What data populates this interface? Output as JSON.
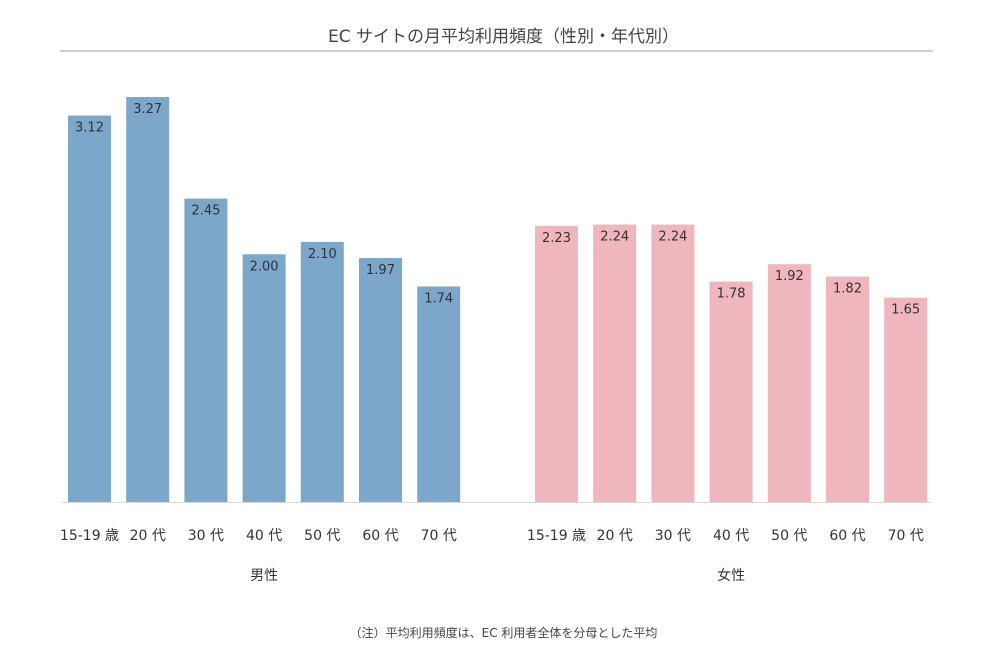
{
  "chart_data": {
    "type": "bar",
    "title": "EC サイトの月平均利用頻度（性別・年代別）",
    "note": "（注）平均利用頻度は、EC 利用者全体を分母とした平均",
    "categories": [
      "15-19 歳",
      "20 代",
      "30 代",
      "40 代",
      "50 代",
      "60 代",
      "70 代"
    ],
    "series": [
      {
        "name": "男性",
        "color": "#7ba7ca",
        "values": [
          3.12,
          3.27,
          2.45,
          2.0,
          2.1,
          1.97,
          1.74
        ]
      },
      {
        "name": "女性",
        "color": "#efb6bd",
        "values": [
          2.23,
          2.24,
          2.24,
          1.78,
          1.92,
          1.82,
          1.65
        ]
      }
    ],
    "ylim": [
      0,
      3.27
    ],
    "grid": false,
    "legend": "none",
    "data_labels": true
  }
}
